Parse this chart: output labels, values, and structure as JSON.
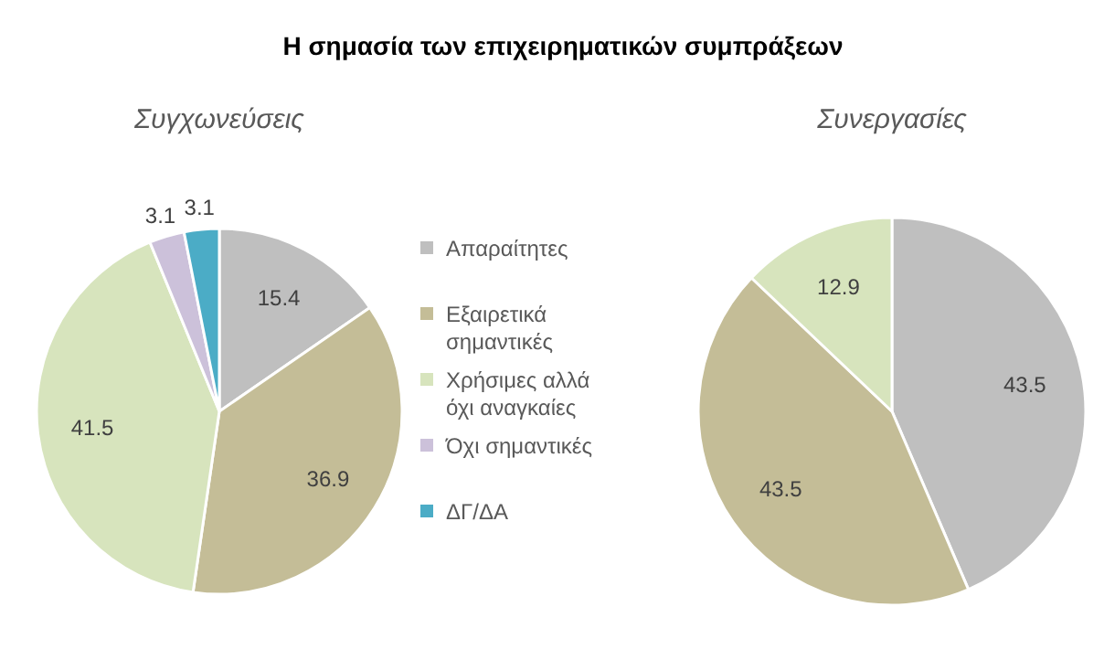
{
  "chart_data": [
    {
      "type": "pie",
      "title": "Η σημασία των επιχειρηματικών συμπράξεων",
      "subtitle": "Συγχωνεύσεις",
      "categories": [
        "Απαραίτητες",
        "Εξαιρετικά σημαντικές",
        "Χρήσιμες αλλά όχι αναγκαίες",
        "Όχι σημαντικές",
        "ΔΓ/ΔΑ"
      ],
      "values": [
        15.4,
        36.9,
        41.5,
        3.1,
        3.1
      ],
      "colors": [
        "#bfbfbf",
        "#c4bd97",
        "#d7e4bd",
        "#ccc1da",
        "#4bacc6"
      ],
      "data_labels": true,
      "legend": "right"
    },
    {
      "type": "pie",
      "subtitle": "Συνεργασίες",
      "categories": [
        null,
        null,
        null
      ],
      "values": [
        43.5,
        43.5,
        12.9
      ],
      "colors": [
        "#bfbfbf",
        "#c4bd97",
        "#d7e4bd"
      ],
      "data_labels": true
    }
  ]
}
